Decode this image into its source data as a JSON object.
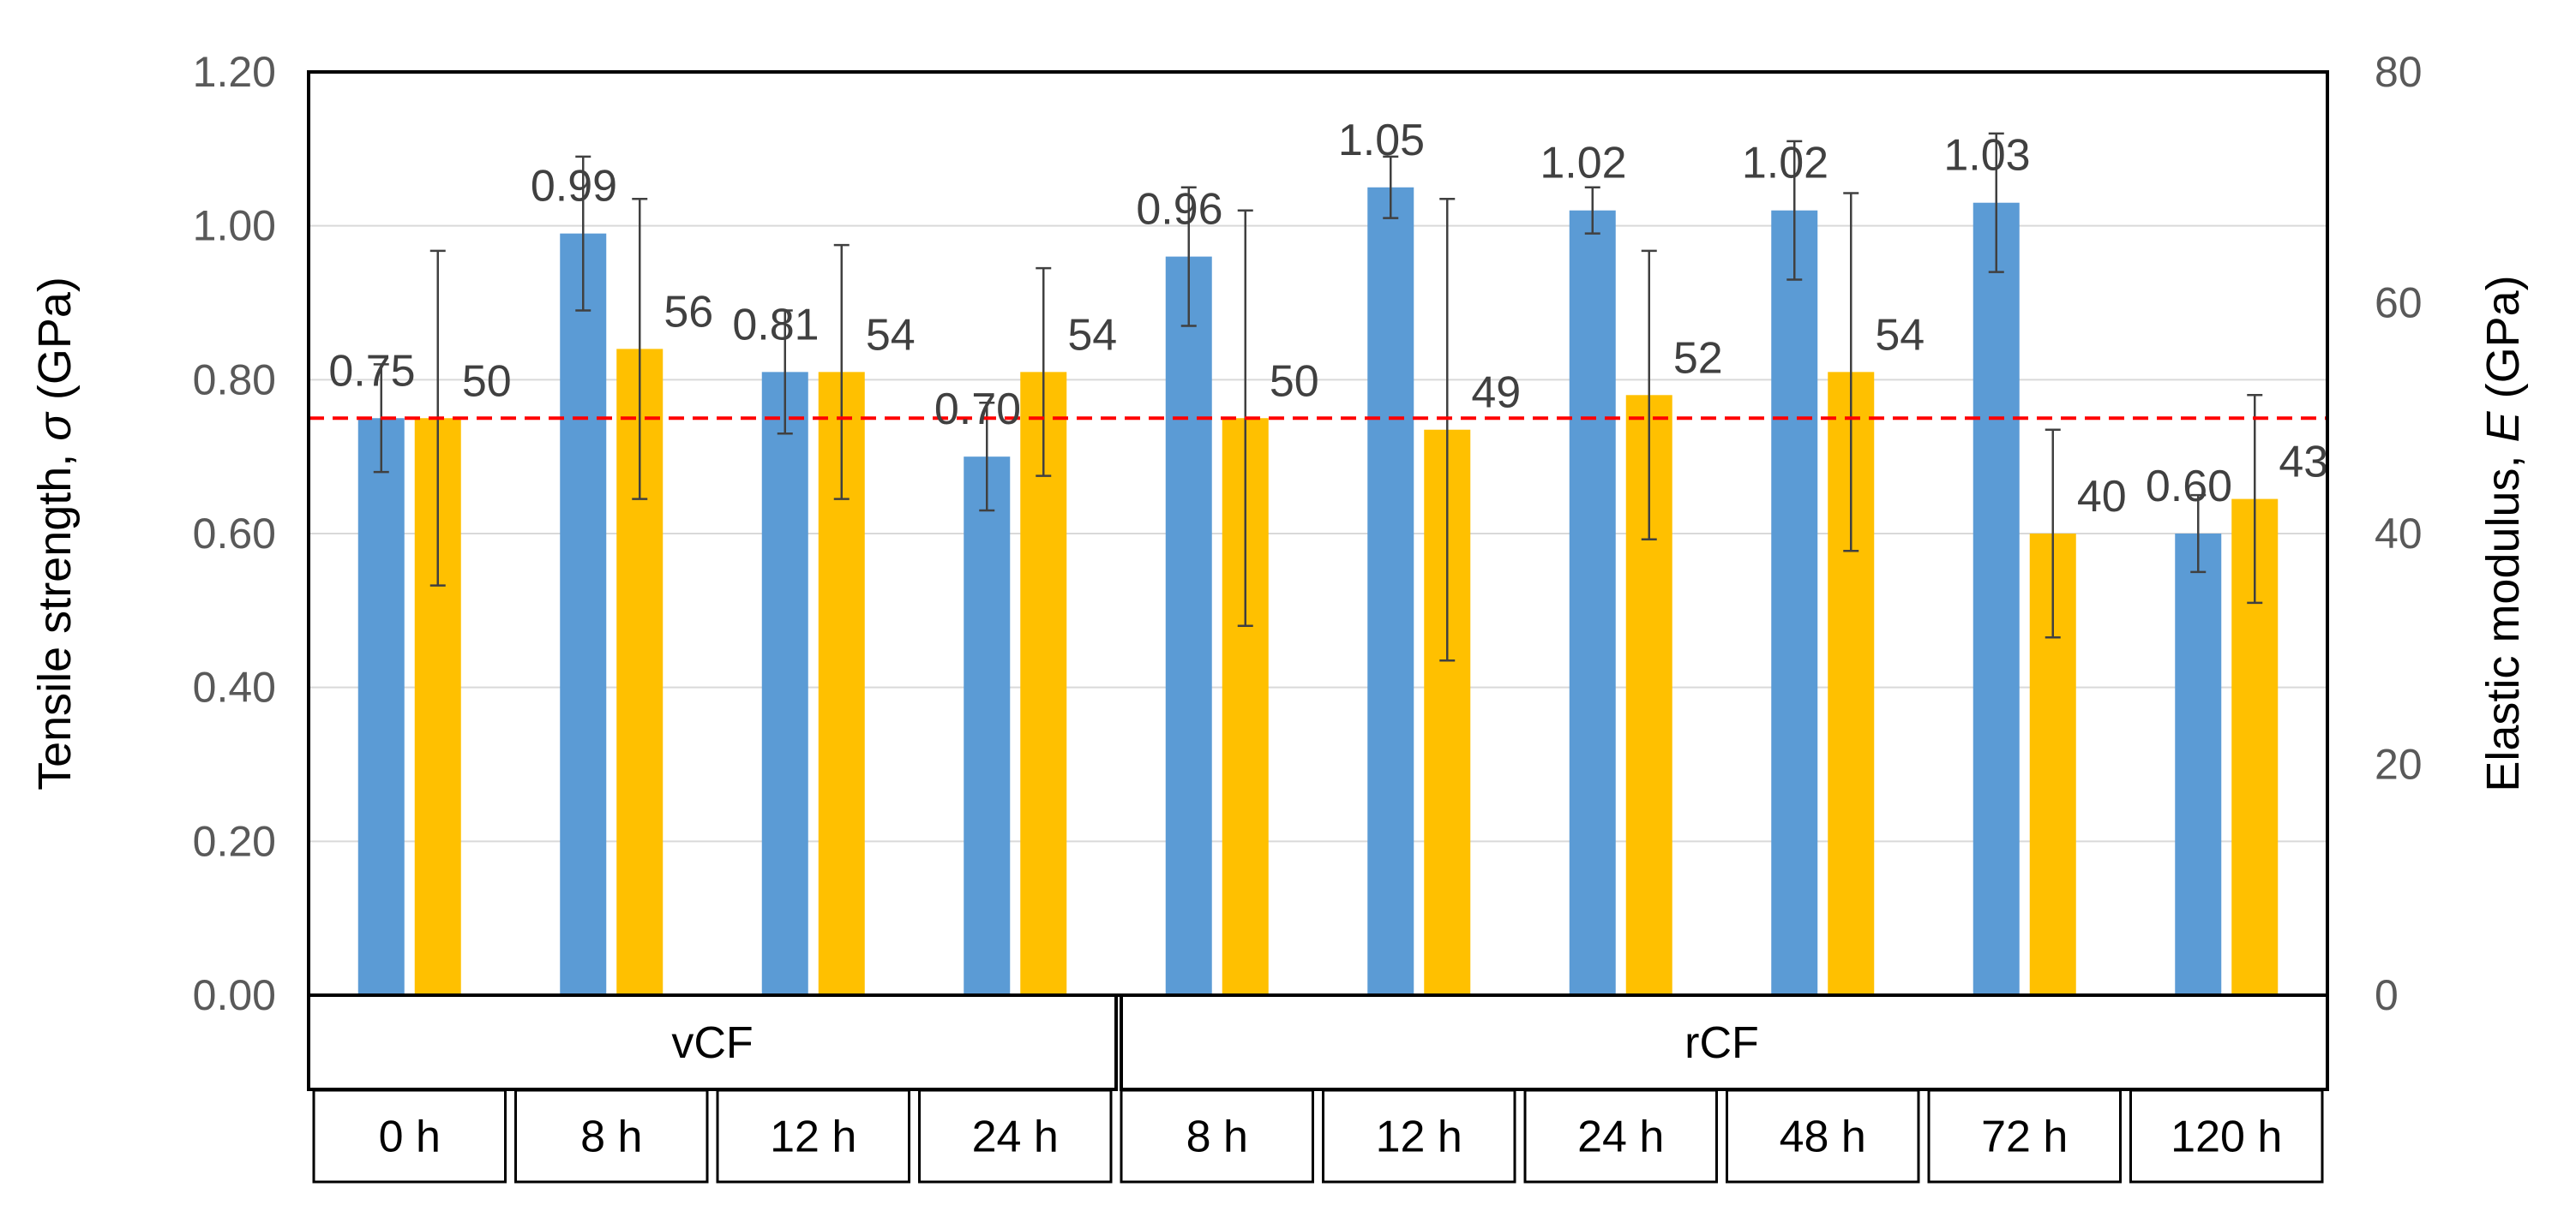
{
  "chart_data": {
    "type": "bar",
    "groups": [
      {
        "label": "vCF",
        "categories": [
          "0 h",
          "8 h",
          "12 h",
          "24 h"
        ]
      },
      {
        "label": "rCF",
        "categories": [
          "8 h",
          "12 h",
          "24 h",
          "48 h",
          "72 h",
          "120 h"
        ]
      }
    ],
    "categories": [
      "0 h",
      "8 h",
      "12 h",
      "24 h",
      "8 h",
      "12 h",
      "24 h",
      "48 h",
      "72 h",
      "120 h"
    ],
    "series": [
      {
        "axis": "left",
        "color": "#5B9BD5",
        "values": [
          0.75,
          0.99,
          0.81,
          0.7,
          0.96,
          1.05,
          1.02,
          1.02,
          1.03,
          0.6
        ],
        "labels": [
          "0.75",
          "0.99",
          "0.81",
          "0.70",
          "0.96",
          "1.05",
          "1.02",
          "1.02",
          "1.03",
          "0.60"
        ],
        "error": [
          0.07,
          0.1,
          0.08,
          0.07,
          0.09,
          0.04,
          0.03,
          0.09,
          0.09,
          0.05
        ]
      },
      {
        "axis": "right",
        "color": "#FFC000",
        "values": [
          50,
          56,
          54,
          54,
          50,
          49,
          52,
          54,
          40,
          43
        ],
        "labels": [
          "50",
          "56",
          "54",
          "54",
          "50",
          "49",
          "52",
          "54",
          "40",
          "43"
        ],
        "error": [
          14.5,
          13,
          11,
          9,
          18,
          20,
          12.5,
          15.5,
          9,
          9
        ]
      }
    ],
    "ylabel_left": "Tensile strength, σ (GPa)",
    "ylabel_right": "Elastic modulus, E (GPa)",
    "ylim_left": [
      0,
      1.2
    ],
    "yticks_left": [
      "0.00",
      "0.20",
      "0.40",
      "0.60",
      "0.80",
      "1.00",
      "1.20"
    ],
    "ylim_right": [
      0,
      80
    ],
    "yticks_right": [
      "0",
      "20",
      "40",
      "60",
      "80"
    ],
    "reference_line": {
      "value": 0.75,
      "axis": "left",
      "style": "dashed",
      "color": "#FF0000"
    },
    "grid": true,
    "legend": "none"
  }
}
